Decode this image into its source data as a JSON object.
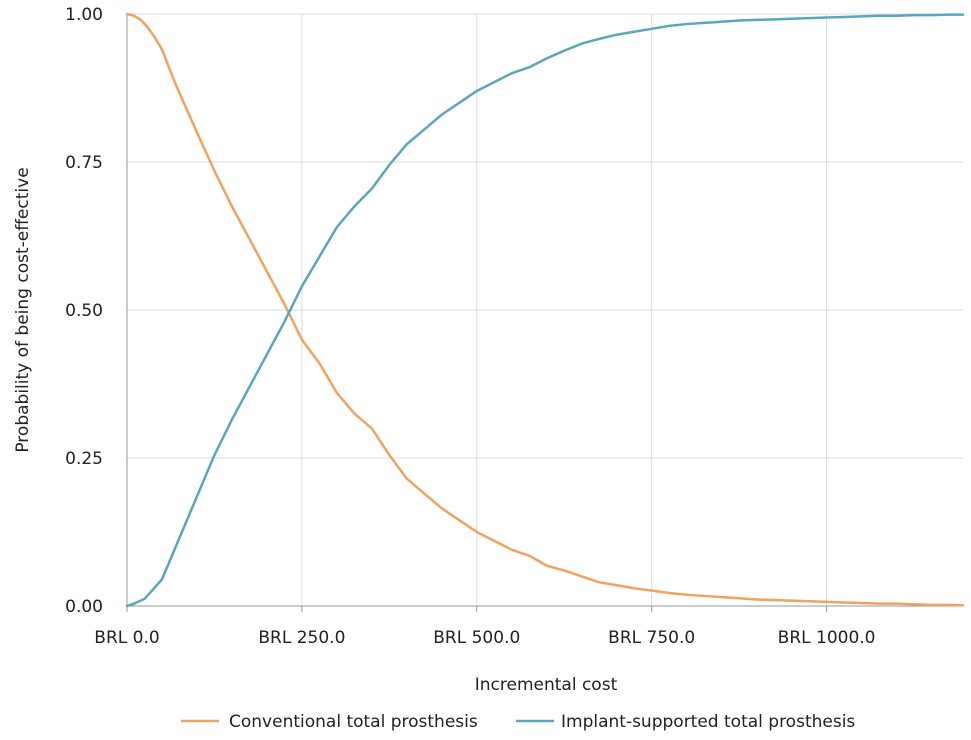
{
  "chart_data": {
    "type": "line",
    "title": "",
    "xlabel": "Incremental cost",
    "ylabel": "Probability of being cost-effective",
    "xlim": [
      0,
      1195
    ],
    "ylim": [
      0,
      1
    ],
    "x_ticks": [
      0,
      250,
      500,
      750,
      1000
    ],
    "x_tick_labels": [
      "BRL 0.0",
      "BRL 250.0",
      "BRL 500.0",
      "BRL 750.0",
      "BRL 1000.0"
    ],
    "y_ticks": [
      0,
      0.25,
      0.5,
      0.75,
      1
    ],
    "y_tick_labels": [
      "0.00",
      "0.25",
      "0.50",
      "0.75",
      "1.00"
    ],
    "grid": true,
    "legend": "bottom",
    "series": [
      {
        "name": "Conventional total prosthesis",
        "color": "#f0a35e",
        "x": [
          0,
          10,
          20,
          30,
          40,
          50,
          70,
          100,
          125,
          150,
          175,
          200,
          225,
          250,
          275,
          300,
          325,
          350,
          375,
          400,
          425,
          450,
          475,
          500,
          525,
          550,
          575,
          600,
          625,
          650,
          675,
          700,
          725,
          750,
          775,
          800,
          825,
          850,
          875,
          900,
          925,
          950,
          975,
          1000,
          1025,
          1050,
          1075,
          1100,
          1125,
          1150,
          1175,
          1195
        ],
        "y": [
          1.0,
          0.997,
          0.99,
          0.977,
          0.96,
          0.94,
          0.88,
          0.8,
          0.735,
          0.675,
          0.62,
          0.565,
          0.51,
          0.45,
          0.41,
          0.36,
          0.325,
          0.3,
          0.255,
          0.215,
          0.19,
          0.165,
          0.145,
          0.125,
          0.11,
          0.095,
          0.085,
          0.068,
          0.06,
          0.05,
          0.04,
          0.035,
          0.03,
          0.026,
          0.022,
          0.019,
          0.017,
          0.015,
          0.013,
          0.011,
          0.01,
          0.009,
          0.008,
          0.007,
          0.006,
          0.005,
          0.004,
          0.004,
          0.003,
          0.002,
          0.002,
          0.001
        ]
      },
      {
        "name": "Implant-supported total prosthesis",
        "color": "#5aa7bd",
        "x": [
          0,
          10,
          25,
          50,
          75,
          100,
          125,
          150,
          175,
          200,
          225,
          250,
          275,
          300,
          325,
          350,
          375,
          400,
          425,
          450,
          475,
          500,
          525,
          550,
          575,
          600,
          625,
          650,
          675,
          700,
          725,
          750,
          775,
          800,
          825,
          850,
          875,
          900,
          925,
          950,
          975,
          1000,
          1025,
          1050,
          1075,
          1100,
          1125,
          1150,
          1175,
          1195
        ],
        "y": [
          0.0,
          0.004,
          0.012,
          0.045,
          0.115,
          0.185,
          0.255,
          0.315,
          0.37,
          0.425,
          0.48,
          0.54,
          0.59,
          0.64,
          0.675,
          0.705,
          0.745,
          0.78,
          0.805,
          0.83,
          0.85,
          0.87,
          0.885,
          0.9,
          0.91,
          0.925,
          0.938,
          0.95,
          0.958,
          0.965,
          0.97,
          0.975,
          0.98,
          0.983,
          0.985,
          0.987,
          0.989,
          0.99,
          0.991,
          0.992,
          0.993,
          0.994,
          0.995,
          0.996,
          0.997,
          0.997,
          0.998,
          0.998,
          0.999,
          0.999
        ]
      }
    ]
  }
}
